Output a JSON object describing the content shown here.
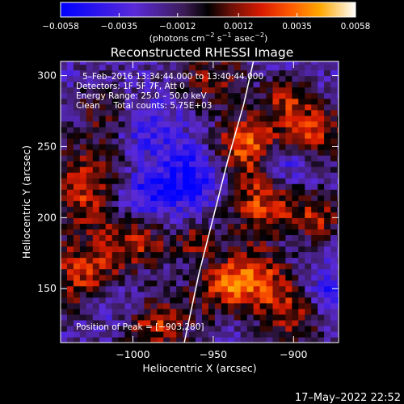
{
  "chart_data": {
    "type": "heatmap",
    "title": "Reconstructed RHESSI Image",
    "xlabel": "Heliocentric X (arcsec)",
    "ylabel": "Heliocentric Y (arcsec)",
    "xlim": [
      -1045,
      -872
    ],
    "ylim": [
      112,
      310
    ],
    "x_ticks": [
      -1000,
      -950,
      -900
    ],
    "y_ticks": [
      150,
      200,
      250,
      300
    ],
    "x_tick_labels": [
      "−1000",
      "−950",
      "−900"
    ],
    "y_tick_labels": [
      "150",
      "200",
      "250",
      "300"
    ],
    "grid": false,
    "colorbar": {
      "min": -0.0058,
      "max": 0.0058,
      "ticks": [
        -0.0058,
        -0.0035,
        -0.0012,
        0.0012,
        0.0035,
        0.0058
      ],
      "tick_labels": [
        "−0.0058",
        "−0.0035",
        "−0.0012",
        "0.0012",
        "0.0035",
        "0.0058"
      ],
      "unit_parts": [
        "(photons cm",
        "−2",
        " s",
        "−1",
        " asec",
        "−2",
        ")"
      ]
    },
    "annotations": {
      "time_range": "5–Feb–2016 13:34:44.000 to 13:40:44.000",
      "detectors": "Detectors: 1F 5F 7F, Att 0",
      "energy_range": "Energy Range: 25.0 – 50.0 keV",
      "clean_line": "Clean     Total counts: 5.75E+03",
      "peak_position": "Position of Peak = [−903,280]"
    },
    "limb_points": [
      [
        -968,
        112
      ],
      [
        -959,
        160
      ],
      [
        -950,
        200
      ],
      [
        -941,
        240
      ],
      [
        -931,
        280
      ],
      [
        -925,
        310
      ]
    ],
    "pixel_size_arcsec": 4,
    "hot_regions": [
      {
        "x": -1025,
        "y": 220,
        "r": 22,
        "v": 0.0045
      },
      {
        "x": -1015,
        "y": 275,
        "r": 14,
        "v": 0.003
      },
      {
        "x": -1030,
        "y": 160,
        "r": 18,
        "v": 0.004
      },
      {
        "x": -995,
        "y": 185,
        "r": 14,
        "v": 0.0035
      },
      {
        "x": -985,
        "y": 125,
        "r": 15,
        "v": 0.0042
      },
      {
        "x": -945,
        "y": 150,
        "r": 14,
        "v": 0.0035
      },
      {
        "x": -950,
        "y": 300,
        "r": 16,
        "v": 0.003
      },
      {
        "x": -930,
        "y": 250,
        "r": 15,
        "v": 0.0052
      },
      {
        "x": -920,
        "y": 210,
        "r": 16,
        "v": 0.0045
      },
      {
        "x": -925,
        "y": 160,
        "r": 14,
        "v": 0.0042
      },
      {
        "x": -890,
        "y": 260,
        "r": 16,
        "v": 0.0045
      },
      {
        "x": -885,
        "y": 200,
        "r": 12,
        "v": 0.0035
      },
      {
        "x": -900,
        "y": 135,
        "r": 16,
        "v": 0.0042
      },
      {
        "x": -905,
        "y": 285,
        "r": 10,
        "v": 0.003
      },
      {
        "x": -960,
        "y": 185,
        "r": 10,
        "v": 0.003
      }
    ],
    "cold_regions": [
      {
        "x": -995,
        "y": 215,
        "r": 16,
        "v": -0.004
      },
      {
        "x": -995,
        "y": 265,
        "r": 14,
        "v": -0.0025
      },
      {
        "x": -960,
        "y": 230,
        "r": 16,
        "v": -0.003
      },
      {
        "x": -905,
        "y": 240,
        "r": 12,
        "v": -0.0035
      },
      {
        "x": -880,
        "y": 145,
        "r": 12,
        "v": -0.0035
      },
      {
        "x": -1010,
        "y": 140,
        "r": 12,
        "v": -0.002
      }
    ]
  },
  "footer": {
    "date_stamp": "17–May–2022 22:52"
  }
}
